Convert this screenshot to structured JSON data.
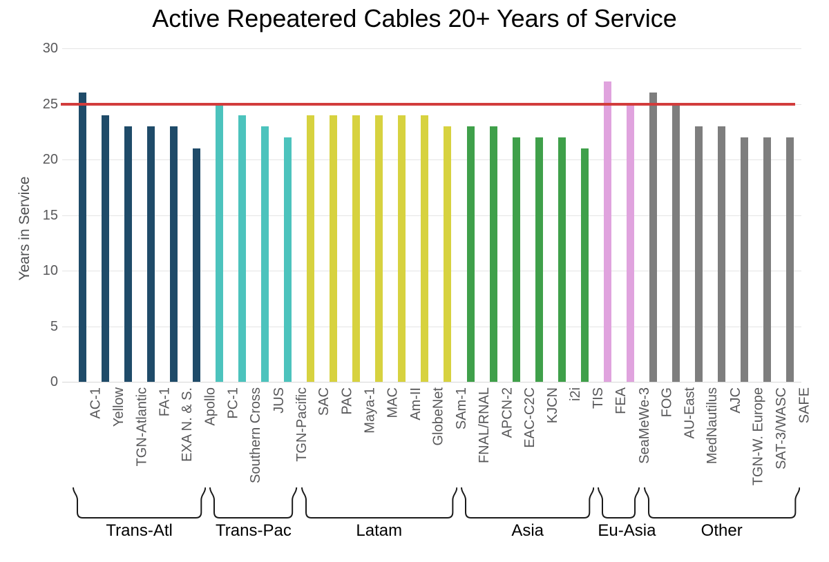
{
  "chart_data": {
    "type": "bar",
    "title": "Active Repeatered Cables 20+ Years of Service",
    "xlabel": "",
    "ylabel": "Years in Service",
    "ylim": [
      0,
      30
    ],
    "yticks": [
      0,
      5,
      10,
      15,
      20,
      25,
      30
    ],
    "grid": true,
    "legend_position": "none",
    "reference_line": {
      "value": 25,
      "color": "#d23c3c"
    },
    "groups": [
      {
        "name": "Trans-Atl",
        "color": "#1f4b69",
        "bars": [
          {
            "label": "AC-1",
            "value": 26
          },
          {
            "label": "Yellow",
            "value": 24
          },
          {
            "label": "TGN-Atlantic",
            "value": 23
          },
          {
            "label": "FA-1",
            "value": 23
          },
          {
            "label": "EXA N. & S.",
            "value": 23
          },
          {
            "label": "Apollo",
            "value": 21
          }
        ]
      },
      {
        "name": "Trans-Pac",
        "color": "#4cc3bd",
        "bars": [
          {
            "label": "PC-1",
            "value": 24.9
          },
          {
            "label": "Southern Cross",
            "value": 24
          },
          {
            "label": "JUS",
            "value": 23
          },
          {
            "label": "TGN-Pacific",
            "value": 22
          }
        ]
      },
      {
        "name": "Latam",
        "color": "#d7d23f",
        "bars": [
          {
            "label": "SAC",
            "value": 24
          },
          {
            "label": "PAC",
            "value": 24
          },
          {
            "label": "Maya-1",
            "value": 24
          },
          {
            "label": "MAC",
            "value": 24
          },
          {
            "label": "Am-II",
            "value": 24
          },
          {
            "label": "GlobeNet",
            "value": 24
          },
          {
            "label": "SAm-1",
            "value": 23
          }
        ]
      },
      {
        "name": "Asia",
        "color": "#3fa04a",
        "bars": [
          {
            "label": "FNAL/RNAL",
            "value": 23
          },
          {
            "label": "APCN-2",
            "value": 23
          },
          {
            "label": "EAC-C2C",
            "value": 22
          },
          {
            "label": "KJCN",
            "value": 22
          },
          {
            "label": "i2i",
            "value": 22
          },
          {
            "label": "TIS",
            "value": 21
          }
        ]
      },
      {
        "name": "Eu-Asia",
        "color": "#e0a3de",
        "bars": [
          {
            "label": "FEA",
            "value": 27
          },
          {
            "label": "SeaMeWe-3",
            "value": 24.9
          }
        ]
      },
      {
        "name": "Other",
        "color": "#7e7e7e",
        "bars": [
          {
            "label": "FOG",
            "value": 26
          },
          {
            "label": "AU-East",
            "value": 25
          },
          {
            "label": "MedNautilus",
            "value": 23
          },
          {
            "label": "AJC",
            "value": 23
          },
          {
            "label": "TGN-W. Europe",
            "value": 22
          },
          {
            "label": "SAT-3/WASC",
            "value": 22
          },
          {
            "label": "SAFE",
            "value": 22
          }
        ]
      }
    ],
    "colors": {
      "reference_line": "#d23c3c",
      "gridline": "#e4e4e4",
      "tick_text": "#58585a",
      "bracket": "#1a1a1a"
    }
  }
}
